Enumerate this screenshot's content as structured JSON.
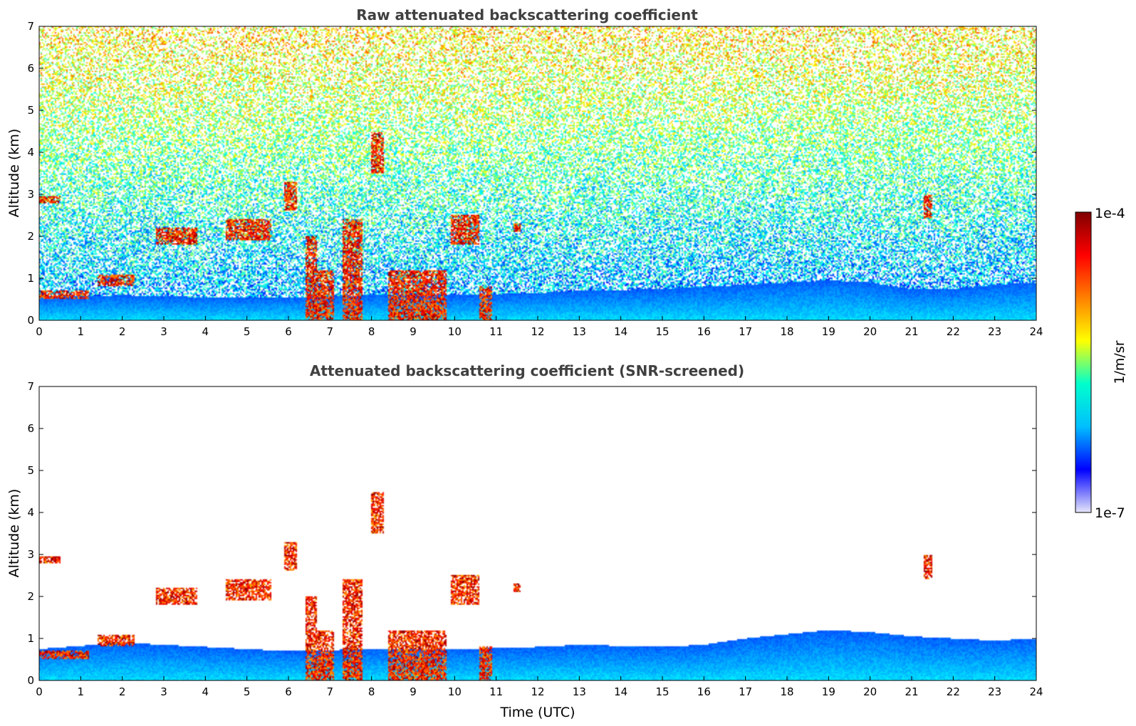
{
  "chart_data": [
    {
      "type": "heatmap",
      "title": "Raw attenuated backscattering coefficient",
      "xlabel": "",
      "ylabel": "Altitude (km)",
      "xlim": [
        0,
        24
      ],
      "ylim": [
        0,
        7
      ],
      "xticks": [
        "0",
        "1",
        "2",
        "3",
        "4",
        "5",
        "6",
        "7",
        "8",
        "9",
        "10",
        "11",
        "12",
        "13",
        "14",
        "15",
        "16",
        "17",
        "18",
        "19",
        "20",
        "21",
        "22",
        "23",
        "24"
      ],
      "yticks": [
        "0",
        "1",
        "2",
        "3",
        "4",
        "5",
        "6",
        "7"
      ],
      "background": "noisy",
      "boundary_layer_top_km": [
        [
          0,
          0.55
        ],
        [
          2,
          0.6
        ],
        [
          4,
          0.55
        ],
        [
          6,
          0.55
        ],
        [
          8,
          0.6
        ],
        [
          10,
          0.6
        ],
        [
          12,
          0.65
        ],
        [
          13,
          0.7
        ],
        [
          15,
          0.75
        ],
        [
          17,
          0.85
        ],
        [
          19,
          0.95
        ],
        [
          20,
          0.9
        ],
        [
          21,
          0.75
        ],
        [
          22,
          0.75
        ],
        [
          23,
          0.85
        ],
        [
          24,
          0.9
        ]
      ],
      "cloud_features": [
        {
          "x0": 0.0,
          "x1": 1.2,
          "y0": 0.5,
          "y1": 0.7
        },
        {
          "x0": 0.0,
          "x1": 0.5,
          "y0": 2.8,
          "y1": 2.95
        },
        {
          "x0": 1.4,
          "x1": 2.3,
          "y0": 0.8,
          "y1": 1.1
        },
        {
          "x0": 2.8,
          "x1": 3.8,
          "y0": 1.8,
          "y1": 2.2
        },
        {
          "x0": 4.5,
          "x1": 5.6,
          "y0": 1.9,
          "y1": 2.4
        },
        {
          "x0": 5.9,
          "x1": 6.2,
          "y0": 2.6,
          "y1": 3.3
        },
        {
          "x0": 6.4,
          "x1": 6.7,
          "y0": 0.0,
          "y1": 2.0
        },
        {
          "x0": 6.7,
          "x1": 7.1,
          "y0": 0.0,
          "y1": 1.2
        },
        {
          "x0": 7.3,
          "x1": 7.8,
          "y0": 0.0,
          "y1": 2.4
        },
        {
          "x0": 8.0,
          "x1": 8.3,
          "y0": 3.5,
          "y1": 4.5
        },
        {
          "x0": 8.4,
          "x1": 9.8,
          "y0": 0.0,
          "y1": 1.2
        },
        {
          "x0": 9.9,
          "x1": 10.6,
          "y0": 1.8,
          "y1": 2.5
        },
        {
          "x0": 10.6,
          "x1": 10.9,
          "y0": 0.0,
          "y1": 0.8
        },
        {
          "x0": 11.4,
          "x1": 11.6,
          "y0": 2.1,
          "y1": 2.3
        },
        {
          "x0": 21.3,
          "x1": 21.5,
          "y0": 2.4,
          "y1": 3.0
        }
      ]
    },
    {
      "type": "heatmap",
      "title": "Attenuated backscattering coefficient (SNR-screened)",
      "xlabel": "Time (UTC)",
      "ylabel": "Altitude (km)",
      "xlim": [
        0,
        24
      ],
      "ylim": [
        0,
        7
      ],
      "xticks": [
        "0",
        "1",
        "2",
        "3",
        "4",
        "5",
        "6",
        "7",
        "8",
        "9",
        "10",
        "11",
        "12",
        "13",
        "14",
        "15",
        "16",
        "17",
        "18",
        "19",
        "20",
        "21",
        "22",
        "23",
        "24"
      ],
      "yticks": [
        "0",
        "1",
        "2",
        "3",
        "4",
        "5",
        "6",
        "7"
      ],
      "background": "screened",
      "boundary_layer_top_km": [
        [
          0,
          0.75
        ],
        [
          2,
          0.9
        ],
        [
          4,
          0.8
        ],
        [
          6,
          0.7
        ],
        [
          8,
          0.75
        ],
        [
          10,
          0.75
        ],
        [
          12,
          0.8
        ],
        [
          13,
          0.85
        ],
        [
          15,
          0.8
        ],
        [
          16,
          0.85
        ],
        [
          17,
          1.0
        ],
        [
          19,
          1.2
        ],
        [
          20,
          1.15
        ],
        [
          21,
          1.05
        ],
        [
          22,
          1.0
        ],
        [
          23,
          0.95
        ],
        [
          24,
          1.0
        ]
      ],
      "cloud_features": [
        {
          "x0": 0.0,
          "x1": 1.2,
          "y0": 0.5,
          "y1": 0.7
        },
        {
          "x0": 0.0,
          "x1": 0.5,
          "y0": 2.8,
          "y1": 2.95
        },
        {
          "x0": 1.4,
          "x1": 2.3,
          "y0": 0.8,
          "y1": 1.1
        },
        {
          "x0": 2.8,
          "x1": 3.8,
          "y0": 1.8,
          "y1": 2.2
        },
        {
          "x0": 4.5,
          "x1": 5.6,
          "y0": 1.9,
          "y1": 2.4
        },
        {
          "x0": 5.9,
          "x1": 6.2,
          "y0": 2.6,
          "y1": 3.3
        },
        {
          "x0": 6.4,
          "x1": 6.7,
          "y0": 0.0,
          "y1": 2.0
        },
        {
          "x0": 6.7,
          "x1": 7.1,
          "y0": 0.0,
          "y1": 1.2
        },
        {
          "x0": 7.3,
          "x1": 7.8,
          "y0": 0.0,
          "y1": 2.4
        },
        {
          "x0": 8.0,
          "x1": 8.3,
          "y0": 3.5,
          "y1": 4.5
        },
        {
          "x0": 8.4,
          "x1": 9.8,
          "y0": 0.0,
          "y1": 1.2
        },
        {
          "x0": 9.9,
          "x1": 10.6,
          "y0": 1.8,
          "y1": 2.5
        },
        {
          "x0": 10.6,
          "x1": 10.9,
          "y0": 0.0,
          "y1": 0.8
        },
        {
          "x0": 11.4,
          "x1": 11.6,
          "y0": 2.1,
          "y1": 2.3
        },
        {
          "x0": 21.3,
          "x1": 21.5,
          "y0": 2.4,
          "y1": 3.0
        }
      ]
    }
  ],
  "colorbar": {
    "label": "1/m/sr",
    "min_label": "1e-7",
    "max_label": "1e-4",
    "scale": "log",
    "colormap": "jet",
    "colors": [
      "#e6e6fa",
      "#0000ff",
      "#00bfff",
      "#00ffcc",
      "#ffff00",
      "#ff8000",
      "#ff0000",
      "#800000"
    ]
  }
}
